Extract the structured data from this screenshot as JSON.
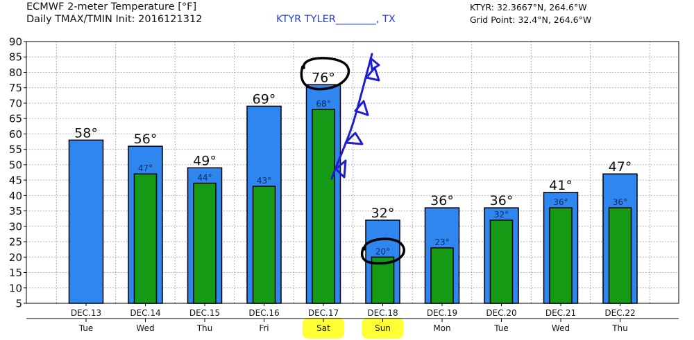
{
  "header": {
    "title_line1": "ECMWF 2-meter Temperature [°F]",
    "title_line2": "Daily TMAX/TMIN Init: 2016121312",
    "station": "KTYR TYLER________, TX",
    "coords_line1": "KTYR: 32.3667°N, 264.6°W",
    "coords_line2": "Grid Point: 32.4°N, 264.6°W"
  },
  "colors": {
    "tmax": "#2f86ee",
    "tmin": "#149a14",
    "bar_outline": "#000000",
    "grid": "#9a9a9a",
    "circle": "#000000",
    "front": "#1c1ed0",
    "highlight": "#ffff33"
  },
  "chart_data": {
    "type": "bar",
    "categories": [
      "DEC.13",
      "DEC.14",
      "DEC.15",
      "DEC.16",
      "DEC.17",
      "DEC.18",
      "DEC.19",
      "DEC.20",
      "DEC.21",
      "DEC.22"
    ],
    "weekdays": [
      "Tue",
      "Wed",
      "Thu",
      "Fri",
      "Sat",
      "Sun",
      "Mon",
      "Tue",
      "Wed",
      "Thu"
    ],
    "series": [
      {
        "values": [
          58,
          56,
          49,
          69,
          76,
          32,
          36,
          36,
          41,
          47
        ],
        "labels": [
          "58°",
          "56°",
          "49°",
          "69°",
          "76°",
          "32°",
          "36°",
          "36°",
          "41°",
          "47°"
        ]
      },
      {
        "values": [
          null,
          47,
          44,
          43,
          68,
          20,
          23,
          32,
          36,
          36
        ],
        "labels": [
          "",
          "47°",
          "44°",
          "43°",
          "68°",
          "20°",
          "23°",
          "32°",
          "36°",
          "36°"
        ]
      }
    ],
    "ylim": [
      5,
      90
    ],
    "yticks": [
      5,
      10,
      15,
      20,
      25,
      30,
      35,
      40,
      45,
      50,
      55,
      60,
      65,
      70,
      75,
      80,
      85,
      90
    ],
    "grid": true,
    "annotations": {
      "circled": [
        "DEC.17 TMAX",
        "DEC.18 TMIN"
      ],
      "highlighted_days": [
        "Sat",
        "Sun"
      ],
      "hand_drawn": "cold-front"
    }
  }
}
